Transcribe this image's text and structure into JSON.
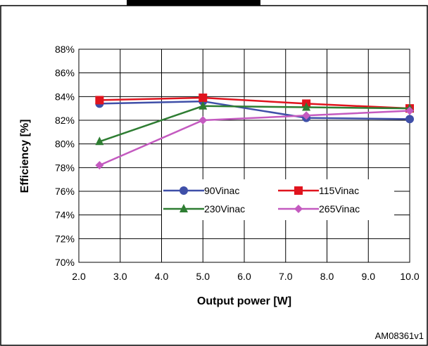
{
  "chart_data": {
    "type": "line",
    "title": "",
    "xlabel": "Output power [W]",
    "ylabel": "Efficiency [%]",
    "xlim": [
      2.0,
      10.0
    ],
    "ylim": [
      70,
      88
    ],
    "xticks": [
      "2.0",
      "3.0",
      "4.0",
      "5.0",
      "6.0",
      "7.0",
      "8.0",
      "9.0",
      "10.0"
    ],
    "yticks": [
      "70%",
      "72%",
      "74%",
      "76%",
      "78%",
      "80%",
      "82%",
      "84%",
      "86%",
      "88%"
    ],
    "grid": true,
    "legend_position": "center",
    "series": [
      {
        "name": "90Vinac",
        "color": "#3f4fa8",
        "marker": "circle",
        "x": [
          2.5,
          5.0,
          7.5,
          10.0
        ],
        "y": [
          83.4,
          83.6,
          82.2,
          82.1
        ]
      },
      {
        "name": "115Vinac",
        "color": "#e0141e",
        "marker": "square",
        "x": [
          2.5,
          5.0,
          7.5,
          10.0
        ],
        "y": [
          83.7,
          83.9,
          83.4,
          83.0
        ]
      },
      {
        "name": "230Vinac",
        "color": "#2e7d32",
        "marker": "triangle",
        "x": [
          2.5,
          5.0,
          7.5,
          10.0
        ],
        "y": [
          80.2,
          83.2,
          83.1,
          83.0
        ]
      },
      {
        "name": "265Vinac",
        "color": "#c45ac0",
        "marker": "diamond",
        "x": [
          2.5,
          5.0,
          7.5,
          10.0
        ],
        "y": [
          78.2,
          82.0,
          82.4,
          82.8
        ]
      }
    ]
  },
  "figure_code": "AM08361v1"
}
